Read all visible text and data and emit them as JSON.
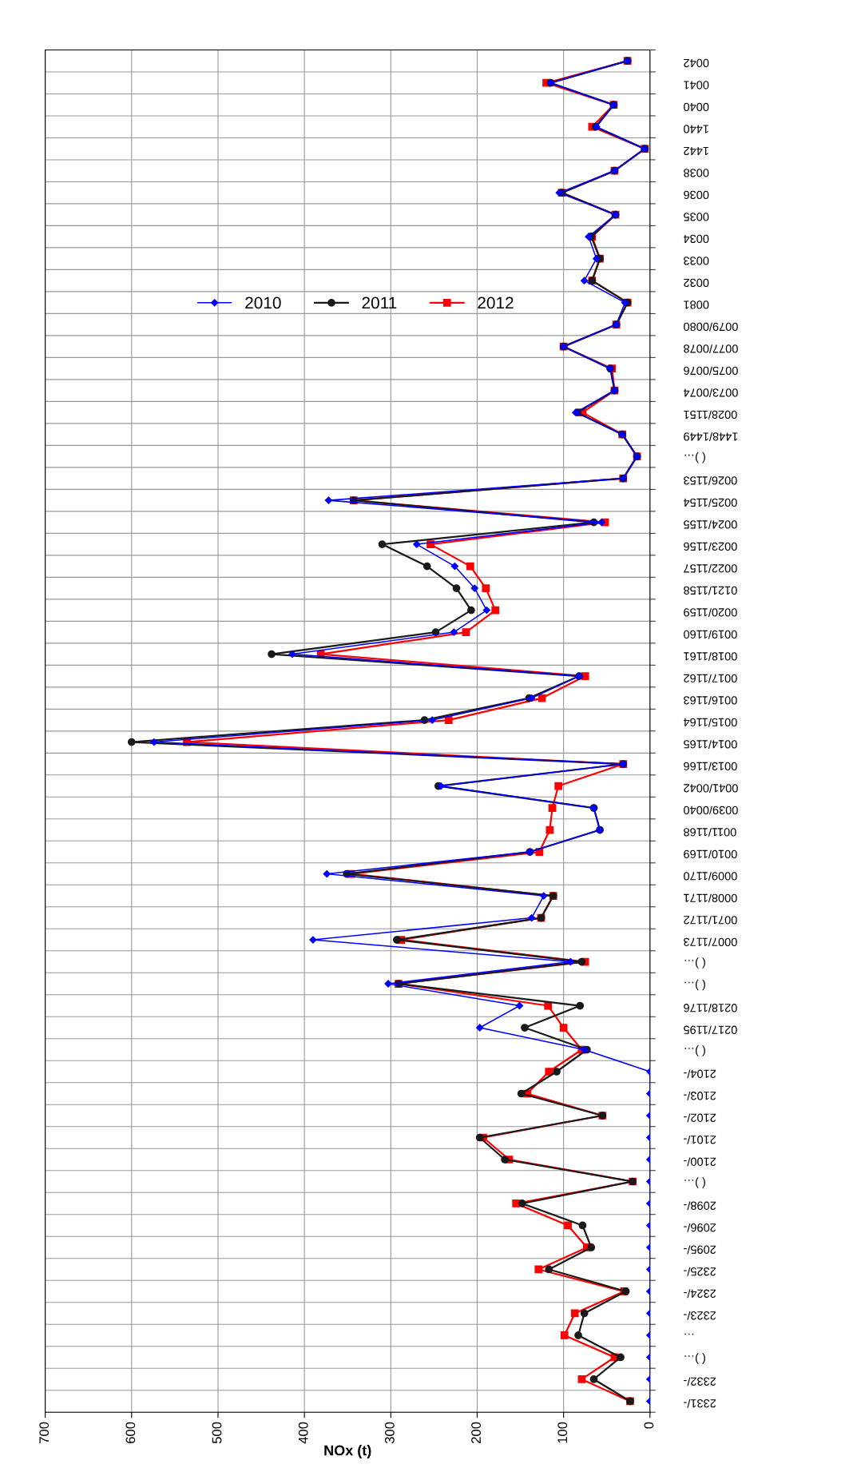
{
  "chart_data": {
    "type": "line",
    "orientation": "horizontal",
    "xlabel": "NOx (t)",
    "categories": [
      "0042",
      "0041",
      "0040",
      "1440",
      "1442",
      "0038",
      "0036",
      "0035",
      "0034",
      "0033",
      "0032",
      "0081",
      "0079/0080",
      "0077/0078",
      "0075/0076",
      "0073/0074",
      "0028/1151",
      "1448/1449",
      "( )…",
      "0026/1153",
      "0025/1154",
      "0024/1155",
      "0023/1156",
      "0022/1157",
      "0121/1158",
      "0020/1159",
      "0019/1160",
      "0018/1161",
      "0017/1162",
      "0016/1163",
      "0015/1164",
      "0014/1165",
      "0013/1166",
      "0041/0042",
      "0039/0040",
      "0011/1168",
      "0010/1169",
      "0009/1170",
      "0008/1171",
      "0071/1172",
      "0007/1173",
      "( )…",
      "( )…",
      "0218/1176",
      "0217/1195",
      "( )…",
      "2104/-",
      "2103/-",
      "2102/-",
      "2101/-",
      "2100/-",
      "( )…",
      "2098/-",
      "2096/-",
      "2095/-",
      "2325/-",
      "2324/-",
      "2323/-",
      "…",
      "( )…",
      "2332/-",
      "2331/-"
    ],
    "series": [
      {
        "name": "2010",
        "color": "#0000ff",
        "marker": "diamond",
        "values": [
          26,
          115,
          42,
          62,
          6,
          41,
          105,
          40,
          71,
          62,
          76,
          29,
          39,
          100,
          46,
          41,
          86,
          32,
          15,
          31,
          372,
          56,
          270,
          226,
          203,
          189,
          227,
          414,
          82,
          137,
          252,
          574,
          31,
          242,
          65,
          58,
          139,
          374,
          123,
          137,
          390,
          92,
          303,
          151,
          197,
          76,
          0,
          0,
          0,
          0,
          0,
          0,
          0,
          0,
          0,
          0,
          0,
          0,
          0,
          0,
          0,
          0
        ]
      },
      {
        "name": "2011",
        "color": "#1a1a1a",
        "marker": "circle",
        "values": [
          26,
          115,
          42,
          63,
          6,
          41,
          102,
          40,
          68,
          58,
          67,
          26,
          39,
          100,
          46,
          41,
          84,
          32,
          15,
          31,
          343,
          65,
          310,
          258,
          224,
          207,
          248,
          438,
          82,
          140,
          261,
          600,
          31,
          245,
          65,
          58,
          139,
          351,
          112,
          126,
          293,
          79,
          291,
          81,
          145,
          73,
          108,
          149,
          55,
          197,
          168,
          20,
          148,
          78,
          68,
          117,
          28,
          76,
          83,
          34,
          65,
          23
        ]
      },
      {
        "name": "2012",
        "color": "#ff0000",
        "marker": "square",
        "values": [
          26,
          120,
          42,
          67,
          6,
          41,
          102,
          40,
          67,
          58,
          67,
          26,
          39,
          100,
          44,
          41,
          78,
          32,
          15,
          31,
          343,
          52,
          254,
          208,
          190,
          179,
          213,
          381,
          75,
          125,
          233,
          536,
          31,
          106,
          113,
          116,
          128,
          346,
          112,
          126,
          288,
          75,
          291,
          118,
          100,
          79,
          117,
          142,
          55,
          193,
          163,
          20,
          155,
          95,
          73,
          129,
          30,
          87,
          99,
          41,
          79,
          23
        ]
      }
    ],
    "xlim": [
      700,
      0
    ],
    "xticks": [
      0,
      100,
      200,
      300,
      400,
      500,
      600,
      700
    ],
    "grid": true,
    "legend": "top right",
    "line_style": "solid"
  }
}
